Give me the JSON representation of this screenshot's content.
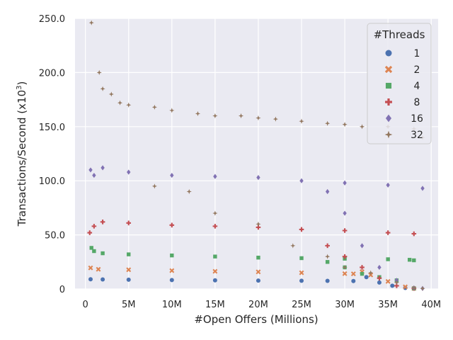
{
  "chart_data": {
    "type": "scatter",
    "xlabel": "#Open Offers (Millions)",
    "ylabel": "Transactions/Second (x10",
    "ylabel_superscript": "3",
    "ylabel_suffix": ")",
    "xlim": [
      -1.2,
      40.8
    ],
    "ylim": [
      0,
      250
    ],
    "x_ticks": [
      0,
      5,
      10,
      15,
      20,
      25,
      30,
      35,
      40
    ],
    "x_tick_labels": [
      "0",
      "5M",
      "10M",
      "15M",
      "20M",
      "25M",
      "30M",
      "35M",
      "40M"
    ],
    "y_ticks": [
      0,
      50,
      100,
      150,
      200,
      250
    ],
    "y_tick_labels": [
      "0",
      "50.0",
      "100.0",
      "150.0",
      "200.0",
      "250.0"
    ],
    "grid": true,
    "legend": {
      "title": "#Threads",
      "placement": "top-right"
    },
    "series": [
      {
        "name": "1",
        "marker": "circle",
        "color": "#4c72b0",
        "points": [
          [
            0.6,
            9.0
          ],
          [
            2,
            8.8
          ],
          [
            5,
            8.6
          ],
          [
            10,
            8.3
          ],
          [
            15,
            8.0
          ],
          [
            20,
            7.8
          ],
          [
            25,
            7.6
          ],
          [
            28,
            7.5
          ],
          [
            31,
            7.4
          ],
          [
            32.5,
            11
          ],
          [
            34,
            6
          ],
          [
            35.5,
            3
          ],
          [
            37,
            1
          ],
          [
            38,
            0.5
          ]
        ]
      },
      {
        "name": "2",
        "marker": "x",
        "color": "#dd8452",
        "points": [
          [
            0.6,
            19.5
          ],
          [
            1.5,
            18.2
          ],
          [
            5,
            17.8
          ],
          [
            10,
            17.0
          ],
          [
            15,
            16.3
          ],
          [
            20,
            15.8
          ],
          [
            25,
            15.0
          ],
          [
            30,
            14.2
          ],
          [
            31,
            14.0
          ],
          [
            32,
            16
          ],
          [
            33,
            13
          ],
          [
            35,
            7
          ],
          [
            37,
            2
          ],
          [
            38,
            0.5
          ]
        ]
      },
      {
        "name": "4",
        "marker": "square",
        "color": "#55a868",
        "points": [
          [
            0.7,
            38
          ],
          [
            1,
            35
          ],
          [
            2,
            33
          ],
          [
            5,
            32
          ],
          [
            10,
            31
          ],
          [
            15,
            30
          ],
          [
            20,
            29
          ],
          [
            25,
            28.5
          ],
          [
            30,
            28
          ],
          [
            35,
            27.5
          ],
          [
            37.5,
            27.0
          ],
          [
            38,
            26.5
          ],
          [
            28,
            25
          ],
          [
            30,
            20
          ],
          [
            32,
            14
          ],
          [
            34,
            11
          ],
          [
            36,
            8
          ],
          [
            38,
            0.5
          ]
        ]
      },
      {
        "name": "8",
        "marker": "plus",
        "color": "#c44e52",
        "points": [
          [
            0.5,
            52
          ],
          [
            1,
            58
          ],
          [
            2,
            62
          ],
          [
            5,
            61
          ],
          [
            10,
            59
          ],
          [
            15,
            58
          ],
          [
            20,
            57
          ],
          [
            25,
            55
          ],
          [
            30,
            54
          ],
          [
            35,
            52
          ],
          [
            38,
            51
          ],
          [
            28,
            40
          ],
          [
            30,
            30
          ],
          [
            32,
            20
          ],
          [
            34,
            10
          ],
          [
            36,
            3
          ],
          [
            38,
            0.5
          ]
        ]
      },
      {
        "name": "16",
        "marker": "diamond",
        "color": "#8172b3",
        "points": [
          [
            0.6,
            110
          ],
          [
            1,
            105
          ],
          [
            2,
            112
          ],
          [
            5,
            108
          ],
          [
            10,
            105
          ],
          [
            15,
            104
          ],
          [
            20,
            103
          ],
          [
            25,
            100
          ],
          [
            30,
            98
          ],
          [
            35,
            96
          ],
          [
            39,
            93
          ],
          [
            28,
            90
          ],
          [
            30,
            70
          ],
          [
            32,
            40
          ],
          [
            34,
            20
          ],
          [
            36,
            8
          ],
          [
            38,
            1
          ],
          [
            39,
            0.5
          ]
        ]
      },
      {
        "name": "32",
        "marker": "star",
        "color": "#937860",
        "points": [
          [
            0.7,
            246
          ],
          [
            1.6,
            200
          ],
          [
            2,
            185
          ],
          [
            3,
            180
          ],
          [
            4,
            172
          ],
          [
            5,
            170
          ],
          [
            8,
            168
          ],
          [
            10,
            165
          ],
          [
            13,
            162
          ],
          [
            15,
            160
          ],
          [
            18,
            160
          ],
          [
            20,
            158
          ],
          [
            22,
            157
          ],
          [
            25,
            155
          ],
          [
            28,
            153
          ],
          [
            30,
            152
          ],
          [
            32,
            150
          ],
          [
            35,
            150
          ],
          [
            38,
            148
          ],
          [
            39,
            140
          ],
          [
            8,
            95
          ],
          [
            12,
            90
          ],
          [
            15,
            70
          ],
          [
            20,
            60
          ],
          [
            24,
            40
          ],
          [
            28,
            30
          ],
          [
            30,
            20
          ],
          [
            33,
            15
          ],
          [
            36,
            6
          ],
          [
            38,
            1
          ],
          [
            39,
            0.5
          ]
        ]
      }
    ]
  }
}
